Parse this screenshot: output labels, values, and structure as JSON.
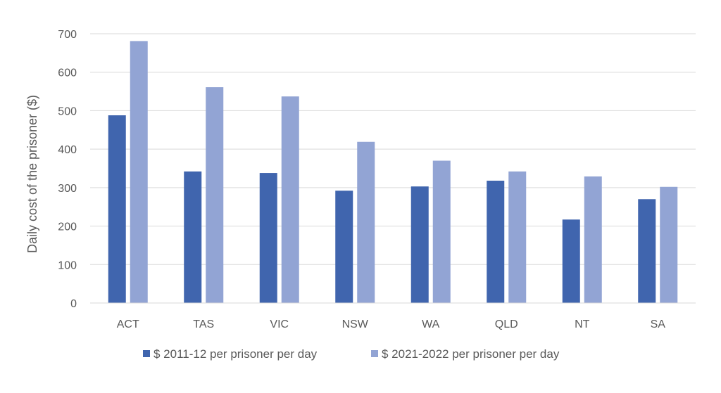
{
  "chart_data": {
    "type": "bar",
    "title": "",
    "xlabel": "",
    "ylabel": "Daily cost of the prisoner ($)",
    "categories": [
      "ACT",
      "TAS",
      "VIC",
      "NSW",
      "WA",
      "QLD",
      "NT",
      "SA"
    ],
    "series": [
      {
        "name": "$ 2011-12 per prisoner per day",
        "color": "#4065ae",
        "values": [
          488,
          342,
          338,
          292,
          303,
          318,
          217,
          270
        ]
      },
      {
        "name": "$ 2021-2022 per prisoner per day",
        "color": "#92a4d4",
        "values": [
          681,
          561,
          537,
          419,
          370,
          342,
          329,
          302
        ]
      }
    ],
    "ylim": [
      0,
      700
    ],
    "yticks": [
      0,
      100,
      200,
      300,
      400,
      500,
      600,
      700
    ],
    "grid": true,
    "legend_position": "bottom"
  }
}
